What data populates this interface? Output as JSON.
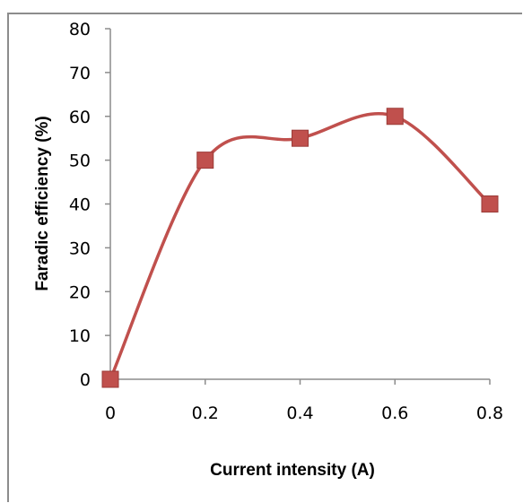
{
  "chart_data": {
    "type": "line",
    "xlabel": "Current intensity (A)",
    "ylabel": "Faradic efficiency (%)",
    "x": [
      0,
      0.2,
      0.4,
      0.6,
      0.8
    ],
    "series": [
      {
        "values": [
          0,
          50,
          55,
          60,
          40
        ]
      }
    ],
    "xlim": [
      0,
      0.8
    ],
    "ylim": [
      0,
      80
    ],
    "x_ticks": [
      "0",
      "0.2",
      "0.4",
      "0.6",
      "0.8"
    ],
    "y_ticks": [
      "0",
      "10",
      "20",
      "30",
      "40",
      "50",
      "60",
      "70",
      "80"
    ],
    "grid": false,
    "legend": "none",
    "smooth_line": true,
    "marker": "square",
    "colors": {
      "line": "#c0504d",
      "marker": "#c0504d",
      "marker_edge": "#9b3a37",
      "axis": "#8c8c8c"
    }
  }
}
